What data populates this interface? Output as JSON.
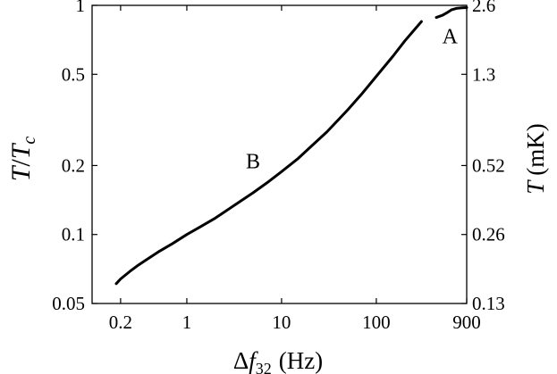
{
  "chart_data": {
    "type": "line",
    "x_scale": "log",
    "y_scale": "log",
    "xlim": [
      0.1,
      900
    ],
    "ylim": [
      0.05,
      1
    ],
    "y_right_lim_mK": [
      0.13,
      2.6
    ],
    "grid": false,
    "x_ticks": [
      0.2,
      1,
      10,
      100,
      900
    ],
    "x_tick_labels": [
      "0.2",
      "1",
      "10",
      "100",
      "900"
    ],
    "y_ticks": [
      0.05,
      0.1,
      0.2,
      0.5,
      1
    ],
    "y_tick_labels": [
      "0.05",
      "0.1",
      "0.2",
      "0.5",
      "1"
    ],
    "y_right_ticks": [
      0.13,
      0.26,
      0.52,
      1.3,
      2.6
    ],
    "y_right_tick_labels": [
      "0.13",
      "0.26",
      "0.52",
      "1.3",
      "2.6"
    ],
    "xlabel": {
      "main": "Δ",
      "var": "f",
      "sub": "32",
      "unit": "(Hz)"
    },
    "ylabel": {
      "var": "T",
      "slash": "/",
      "var2": "T",
      "sub": "c"
    },
    "y_right_label": {
      "var": "T",
      "unit": "(mK)"
    },
    "annotations": [
      {
        "text": "A",
        "x": 600,
        "y": 0.88
      },
      {
        "text": "B",
        "x": 5,
        "y": 0.25
      }
    ],
    "series": [
      {
        "label": "B",
        "x": [
          0.18,
          0.2,
          0.25,
          0.3,
          0.4,
          0.5,
          0.7,
          1,
          1.5,
          2,
          3,
          5,
          7,
          10,
          15,
          20,
          30,
          50,
          70,
          100,
          150,
          200,
          300
        ],
        "y": [
          0.061,
          0.064,
          0.069,
          0.073,
          0.079,
          0.084,
          0.091,
          0.1,
          0.11,
          0.118,
          0.132,
          0.152,
          0.168,
          0.188,
          0.215,
          0.24,
          0.28,
          0.35,
          0.41,
          0.49,
          0.6,
          0.7,
          0.85
        ]
      },
      {
        "label": "A",
        "x": [
          430,
          500,
          560,
          620,
          700,
          800,
          900
        ],
        "y": [
          0.885,
          0.905,
          0.93,
          0.955,
          0.97,
          0.975,
          0.978
        ]
      }
    ]
  }
}
